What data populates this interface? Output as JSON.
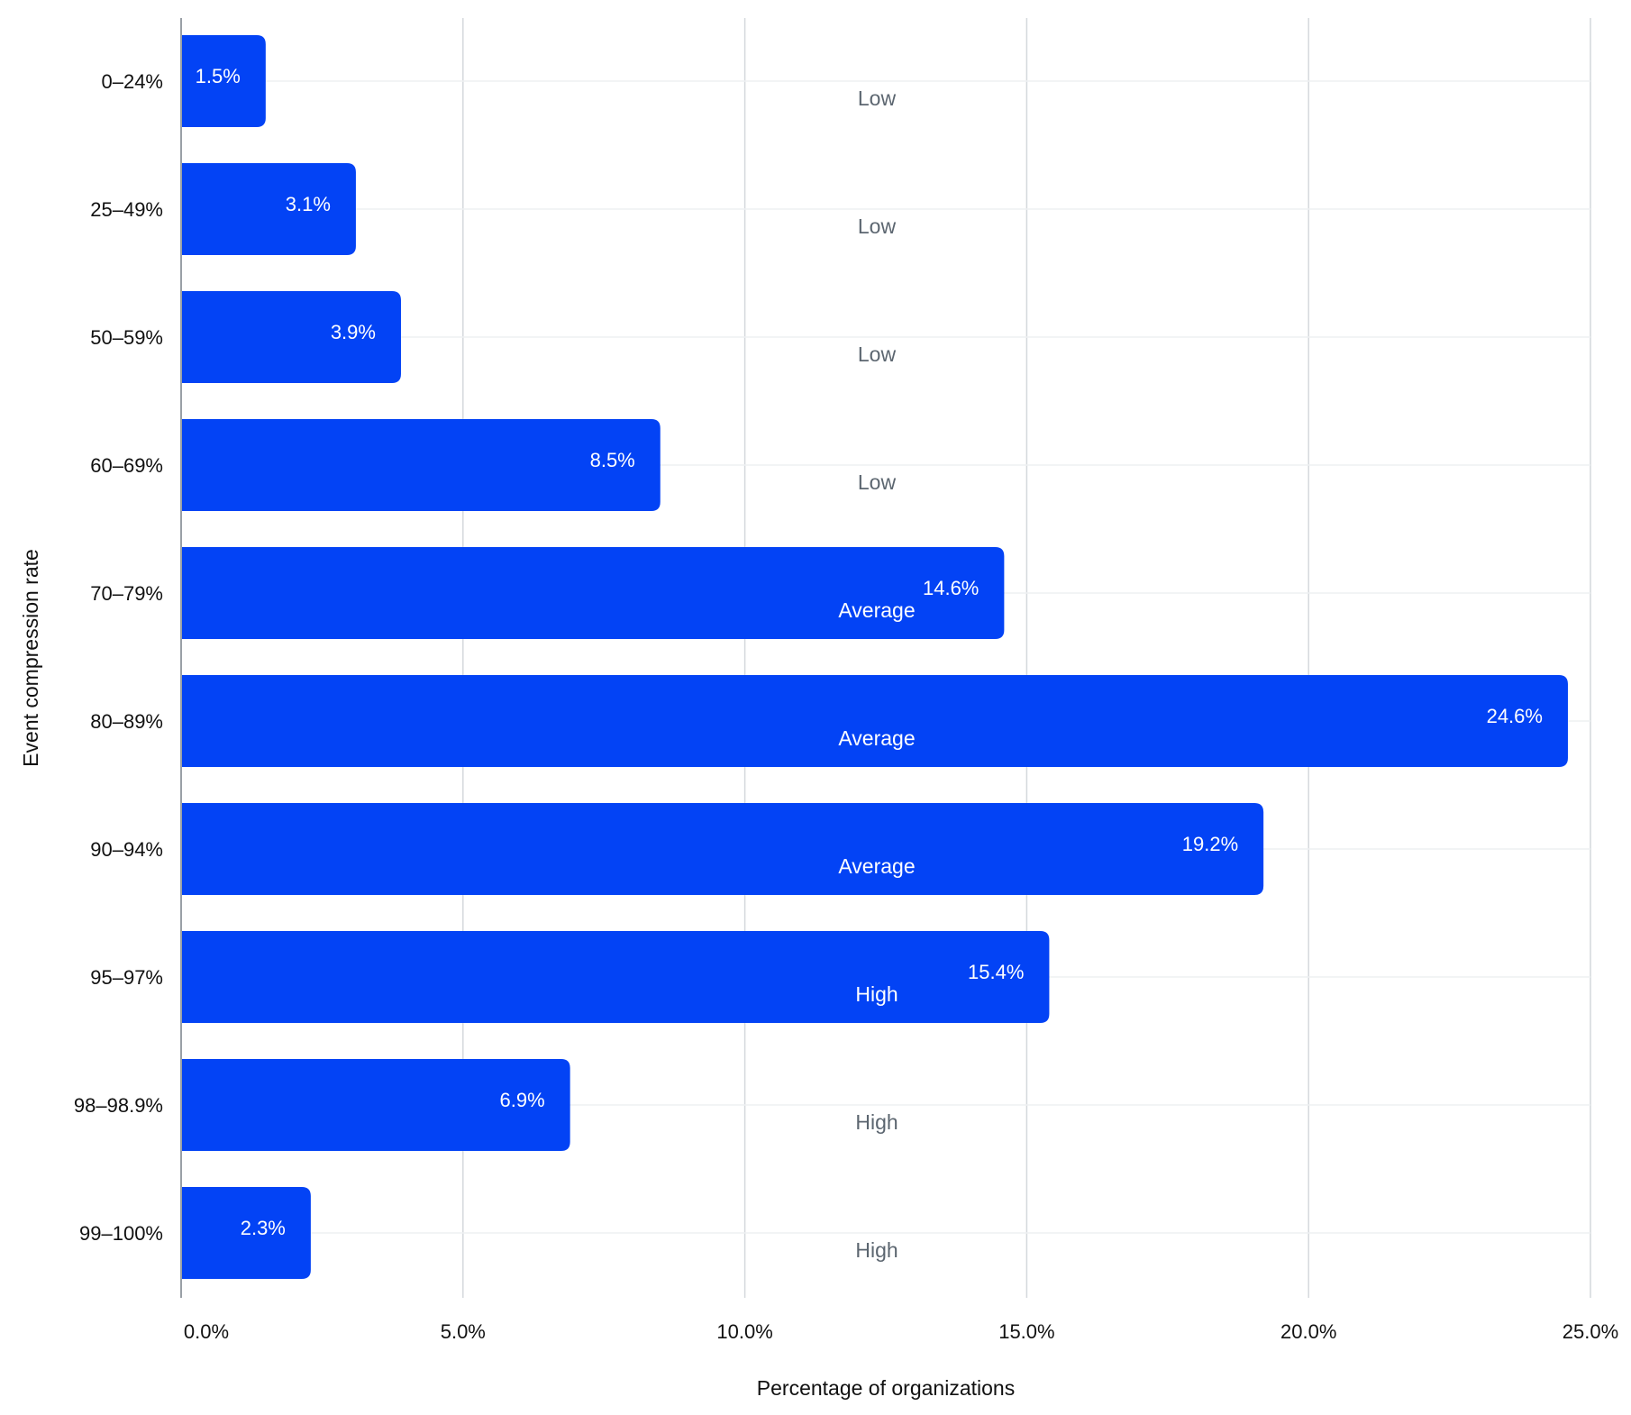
{
  "chart_data": {
    "type": "bar",
    "orientation": "horizontal",
    "xlabel": "Percentage of organizations",
    "ylabel": "Event compression rate",
    "xlim": [
      0,
      25
    ],
    "xticks": [
      "0.0%",
      "5.0%",
      "10.0%",
      "15.0%",
      "20.0%",
      "25.0%"
    ],
    "grid": true,
    "categories": [
      "0–24%",
      "25–49%",
      "50–59%",
      "60–69%",
      "70–79%",
      "80–89%",
      "90–94%",
      "95–97%",
      "98–98.9%",
      "99–100%"
    ],
    "values": [
      1.5,
      3.1,
      3.9,
      8.5,
      14.6,
      24.6,
      19.2,
      15.4,
      6.9,
      2.3
    ],
    "value_labels": [
      "1.5%",
      "3.1%",
      "3.9%",
      "8.5%",
      "14.6%",
      "24.6%",
      "19.2%",
      "15.4%",
      "6.9%",
      "2.3%"
    ],
    "tiers": [
      "Low",
      "Low",
      "Low",
      "Low",
      "Average",
      "Average",
      "Average",
      "High",
      "High",
      "High"
    ],
    "colors": {
      "bar": "#0343f5",
      "bar_label": "#ffffff",
      "tier_on_bar": "#ffffff",
      "tier_off_bar": "#5c6670",
      "grid_major": "#d4d8dc",
      "grid_minor": "#eef0f2",
      "axis": "#9aa0a6",
      "text": "#111111"
    }
  }
}
